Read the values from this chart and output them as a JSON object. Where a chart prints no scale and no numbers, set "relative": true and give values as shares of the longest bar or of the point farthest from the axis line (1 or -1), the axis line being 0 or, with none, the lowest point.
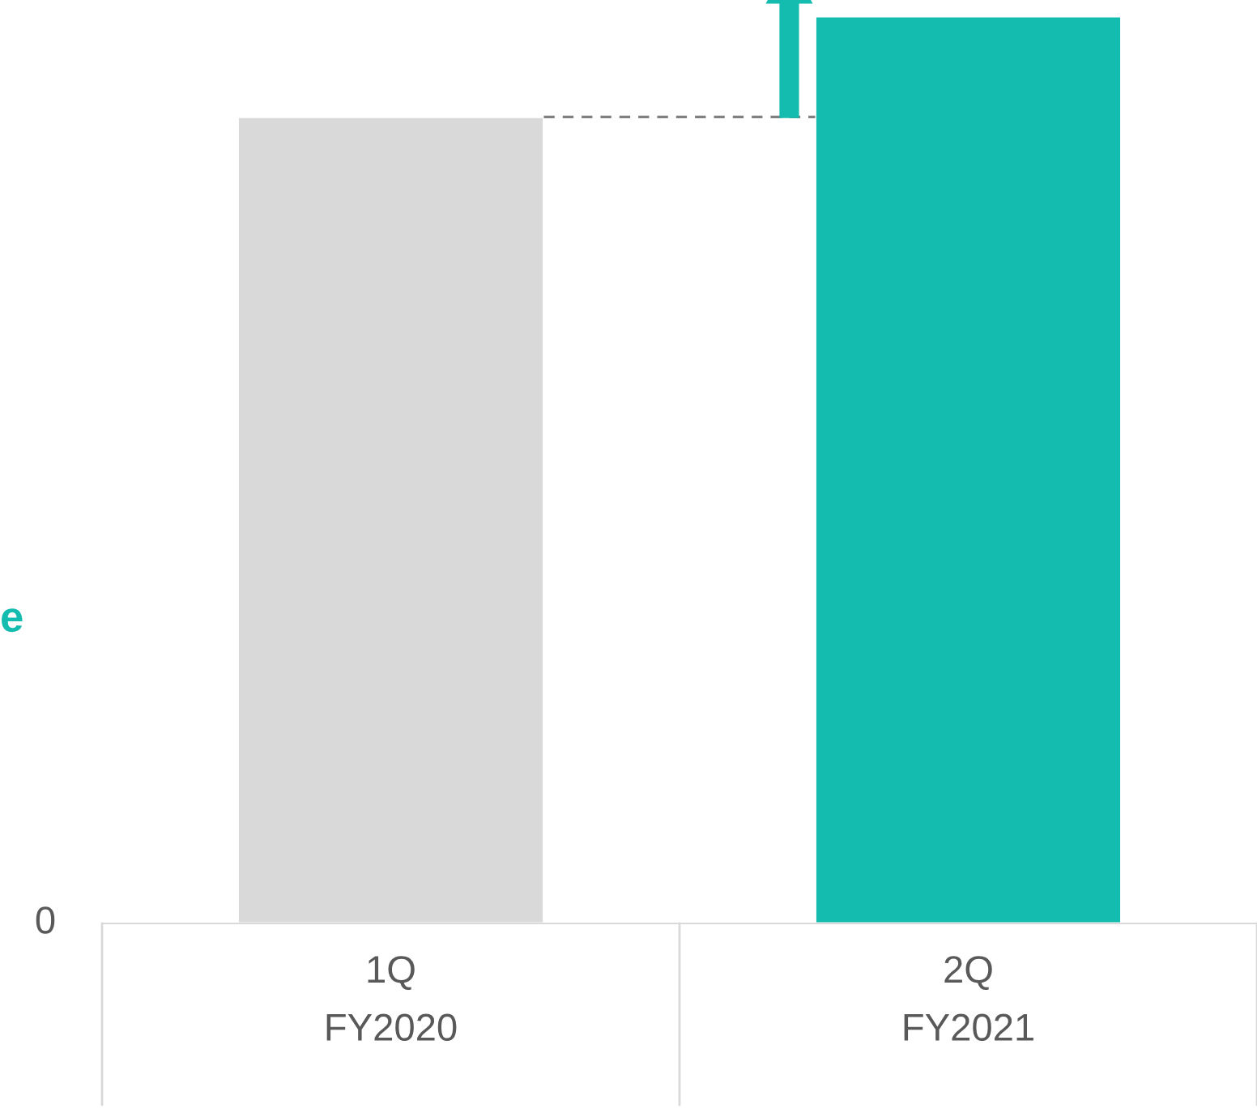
{
  "chart_data": {
    "type": "bar",
    "relative": true,
    "categories": [
      "1Q\nFY2020",
      "2Q\nFY2021"
    ],
    "values": [
      0.889,
      1
    ],
    "colors": [
      "#d9d9d9",
      "#13bcae"
    ],
    "ref_lines": [
      {
        "axis": "y",
        "value": 0.889,
        "color": "#808080",
        "line_style": "dashed"
      }
    ],
    "annotations": [
      "e",
      "0"
    ],
    "grid": false,
    "legend": false
  }
}
